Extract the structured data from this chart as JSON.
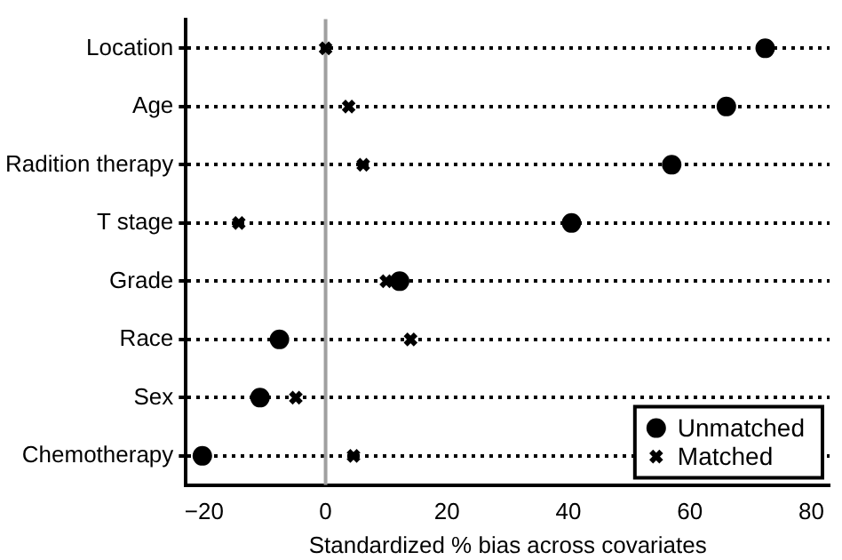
{
  "chart_data": {
    "type": "scatter",
    "xlabel": "Standardized % bias across covariates",
    "categories": [
      "Location",
      "Age",
      "Radition therapy",
      "T stage",
      "Grade",
      "Race",
      "Sex",
      "Chemotherapy"
    ],
    "series": [
      {
        "name": "Unmatched",
        "color": "#000000",
        "marker": "circle",
        "values": [
          72.4,
          66,
          57,
          40.5,
          12.2,
          -7.6,
          -10.8,
          -20.3
        ]
      },
      {
        "name": "Matched",
        "color": "#000000",
        "marker": "cross",
        "values": [
          0,
          3.8,
          6.2,
          -14.3,
          10,
          14,
          -4.9,
          4.6
        ]
      }
    ],
    "orientation": "horizontal",
    "xlim": [
      -23,
      83
    ],
    "xticks": [
      -20,
      0,
      20,
      40,
      60,
      80
    ],
    "ref_lines": [
      {
        "axis": "x",
        "value": 0,
        "color": "#a0a0a0"
      }
    ],
    "grid": "y",
    "line_style": "dotted",
    "legend": "bottom right"
  }
}
